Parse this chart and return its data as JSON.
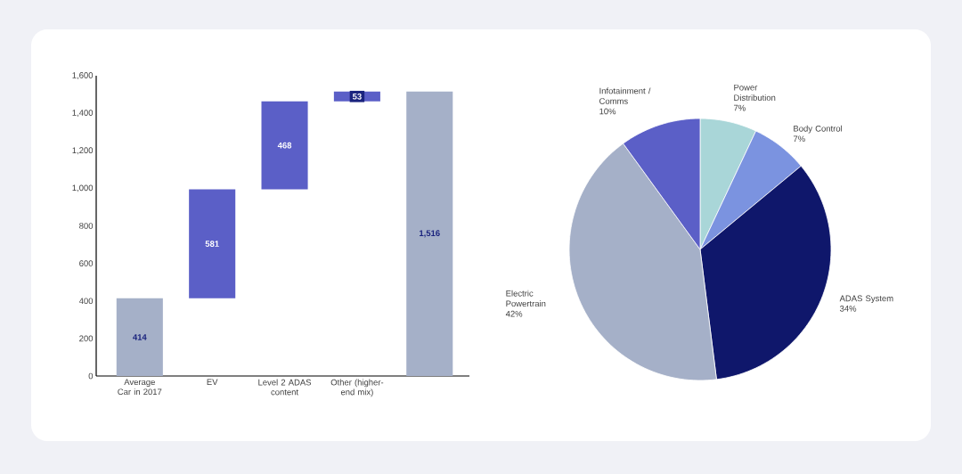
{
  "chart_data": [
    {
      "type": "bar",
      "categories": [
        "Average Car in 2017",
        "EV",
        "Level 2 ADAS content",
        "Other (higher-end mix)",
        null
      ],
      "values": [
        414,
        581,
        468,
        53,
        1516
      ],
      "base": [
        0,
        414,
        995,
        1463,
        0
      ],
      "colors": [
        "#a5b0c8",
        "#5b5fc7",
        "#5b5fc7",
        "#5b5fc7",
        "#a5b0c8"
      ],
      "ylim": [
        0,
        1600
      ],
      "yticks": [
        0,
        200,
        400,
        600,
        800,
        {
          "value": 1000,
          "label": "1,000"
        },
        {
          "value": 1200,
          "label": "1,200"
        },
        {
          "value": 1400,
          "label": "1,400"
        },
        {
          "value": 1600,
          "label": "1,600"
        }
      ],
      "value_labels": [
        "414",
        "581",
        "468",
        "53",
        "1,516"
      ]
    },
    {
      "type": "pie",
      "categories": [
        "Power Distribution",
        "Body Control",
        "ADAS System",
        "Electric Powertrain",
        "Infotainment / Comms"
      ],
      "values": [
        7,
        7,
        34,
        42,
        10
      ],
      "colors": [
        "#a9d6d8",
        "#7b93e0",
        "#0f176b",
        "#a5b0c8",
        "#5b5fc7"
      ],
      "value_labels": [
        "7%",
        "7%",
        "34%",
        "42%",
        "10%"
      ]
    }
  ]
}
